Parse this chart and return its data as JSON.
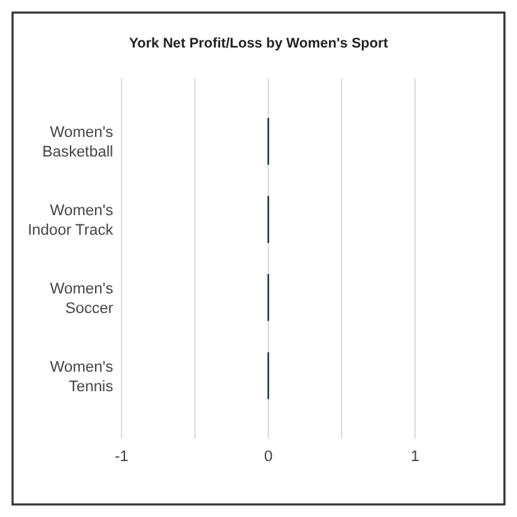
{
  "chart_data": {
    "type": "bar",
    "orientation": "horizontal",
    "title": "York Net Profit/Loss by Women's Sport",
    "categories": [
      "Women's\nBasketball",
      "Women's\nIndoor Track",
      "Women's\nSoccer",
      "Women's\nTennis"
    ],
    "values": [
      0,
      0,
      0,
      0
    ],
    "color": "#1b3a4b",
    "xlim": [
      -1,
      1
    ],
    "xticks": [
      -1,
      {
        "value": -0.5,
        "label": null
      },
      0,
      {
        "value": 0.5,
        "label": null
      },
      1
    ],
    "grid": "x"
  }
}
